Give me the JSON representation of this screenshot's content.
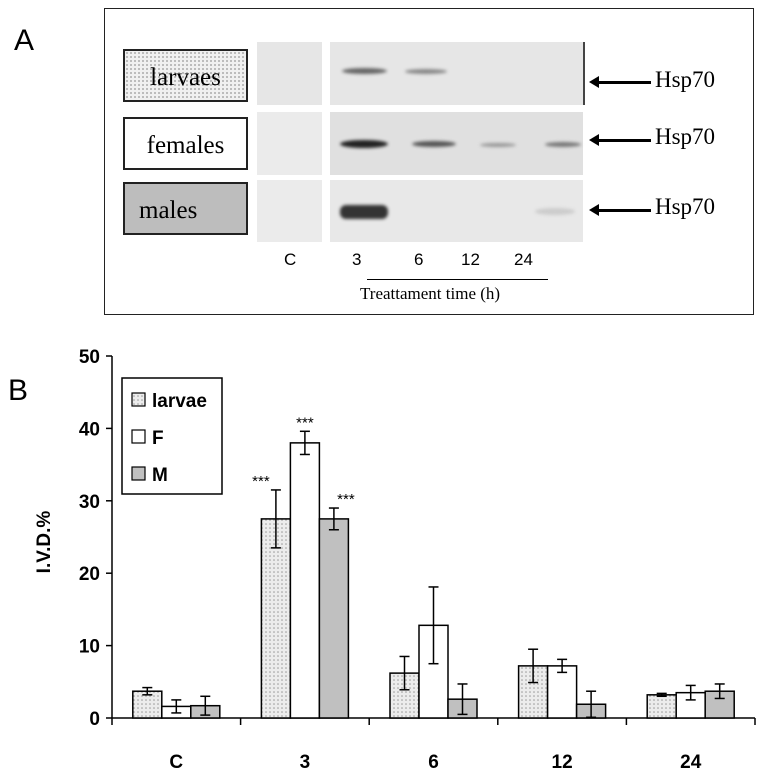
{
  "panelA": {
    "letter": "A",
    "rows": [
      {
        "label": "larvaes",
        "marker": "Hsp70"
      },
      {
        "label": "females",
        "marker": "Hsp70"
      },
      {
        "label": "males",
        "marker": "Hsp70"
      }
    ],
    "lanes": [
      "C",
      "3",
      "6",
      "12",
      "24"
    ],
    "xlabel": "Treattament time (h)"
  },
  "panelB": {
    "letter": "B"
  },
  "chart_data": {
    "type": "bar",
    "categories": [
      "C",
      "3",
      "6",
      "12",
      "24"
    ],
    "ylabel": "I.V.D.%",
    "ylim": [
      0,
      50
    ],
    "yticks": [
      0,
      10,
      20,
      30,
      40,
      50
    ],
    "legend_position": "top-left",
    "series": [
      {
        "name": "larvae",
        "fill": "dotted",
        "color": "#e8e8e8",
        "values": [
          3.7,
          27.5,
          6.2,
          7.2,
          3.2
        ],
        "errors": [
          0.5,
          4.0,
          2.3,
          2.3,
          0.2
        ],
        "annotations": [
          "",
          "***",
          "",
          "",
          ""
        ]
      },
      {
        "name": "F",
        "fill": "solid",
        "color": "#ffffff",
        "values": [
          1.6,
          38.0,
          12.8,
          7.2,
          3.5
        ],
        "errors": [
          0.9,
          1.6,
          5.3,
          0.9,
          1.0
        ],
        "annotations": [
          "",
          "***",
          "",
          "",
          ""
        ]
      },
      {
        "name": "M",
        "fill": "solid",
        "color": "#c0c0c0",
        "values": [
          1.7,
          27.5,
          2.6,
          1.9,
          3.7
        ],
        "errors": [
          1.3,
          1.5,
          2.1,
          1.8,
          1.0
        ],
        "annotations": [
          "",
          "***",
          "",
          "",
          ""
        ]
      }
    ]
  }
}
